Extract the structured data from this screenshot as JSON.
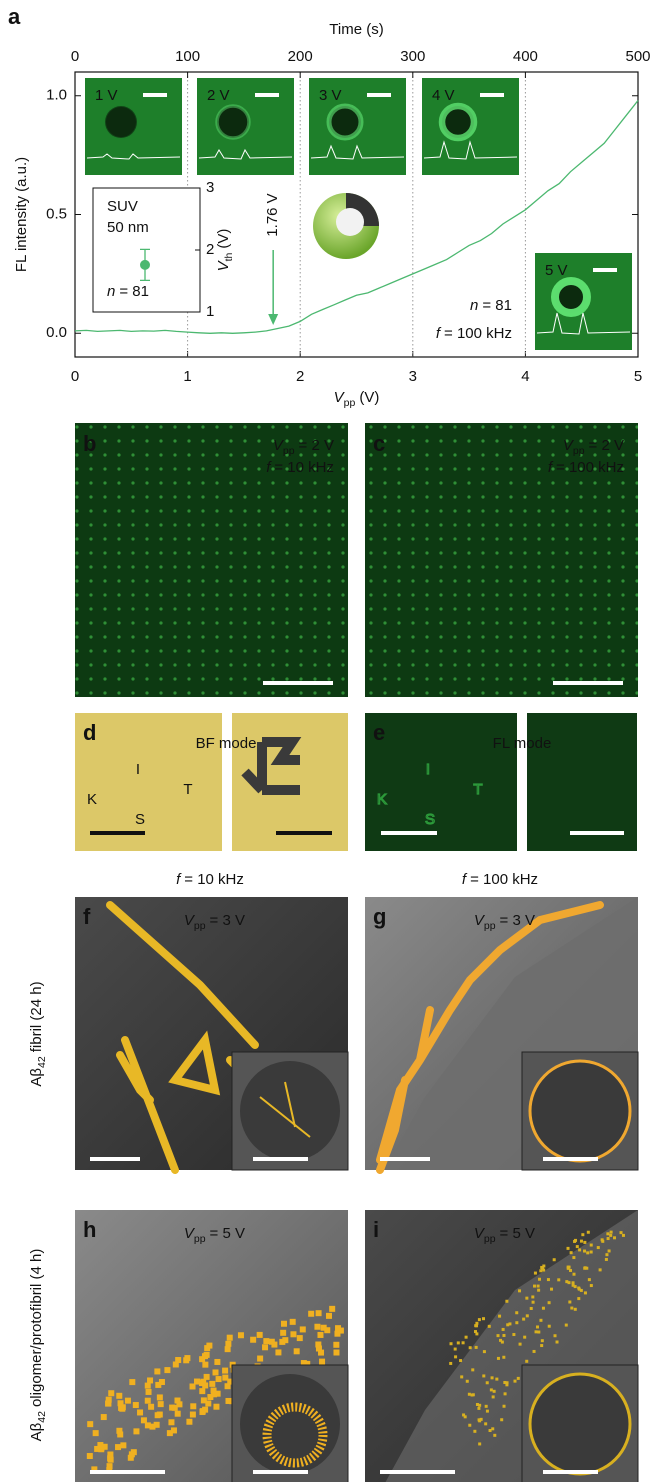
{
  "chart_data": {
    "type": "line",
    "panel": "a",
    "top_axis_label": "Time (s)",
    "top_xlim": [
      0,
      500
    ],
    "top_xticks": [
      0,
      100,
      200,
      300,
      400,
      500
    ],
    "x_label_symbol": "V",
    "x_label_sub": "pp",
    "x_label_unit": "(V)",
    "y_label": "FL intensity (a.u.)",
    "xlim": [
      0,
      5
    ],
    "xticks": [
      0,
      1,
      2,
      3,
      4,
      5
    ],
    "ylim": [
      -0.1,
      1.1
    ],
    "yticks": [
      {
        "value": 0,
        "label": "0.0"
      },
      {
        "value": 0.5,
        "label": "0.5"
      },
      {
        "value": 1,
        "label": "1.0"
      }
    ],
    "xgrid": true,
    "color": "#4cb870",
    "x": [
      0,
      0.1,
      0.2,
      0.3,
      0.4,
      0.5,
      0.6,
      0.7,
      0.8,
      0.9,
      1,
      1.1,
      1.2,
      1.3,
      1.4,
      1.5,
      1.6,
      1.7,
      1.8,
      1.9,
      2,
      2.1,
      2.2,
      2.3,
      2.4,
      2.5,
      2.6,
      2.7,
      2.8,
      2.9,
      3,
      3.1,
      3.2,
      3.3,
      3.4,
      3.5,
      3.6,
      3.7,
      3.8,
      3.9,
      4,
      4.1,
      4.2,
      4.3,
      4.4,
      4.5,
      4.6,
      4.7,
      4.8,
      4.9,
      5
    ],
    "values": [
      0.01,
      0.012,
      0.008,
      0.01,
      0.012,
      0.008,
      0.01,
      0.009,
      0.012,
      0.008,
      0.005,
      0.002,
      0,
      0.002,
      0,
      0.002,
      0.005,
      0.01,
      0.02,
      0.03,
      0.05,
      0.08,
      0.1,
      0.12,
      0.14,
      0.16,
      0.17,
      0.19,
      0.21,
      0.23,
      0.25,
      0.27,
      0.29,
      0.31,
      0.34,
      0.37,
      0.39,
      0.42,
      0.46,
      0.49,
      0.52,
      0.56,
      0.6,
      0.63,
      0.68,
      0.72,
      0.76,
      0.8,
      0.86,
      0.92,
      0.98
    ],
    "threshold": 1.76,
    "threshold_label": "1.76 V",
    "n_symbol": "n",
    "n_value": "= 81",
    "f_symbol": "f",
    "f_value": "= 100 kHz",
    "image_insets": [
      "1 V",
      "2 V",
      "3 V",
      "4 V",
      "5 V"
    ],
    "inset": {
      "label": "SUV",
      "sublabel": "50 nm",
      "y_label_symbol": "V",
      "y_label_sub": "th",
      "y_label_unit": "(V)",
      "ylim": [
        1,
        3
      ],
      "yticks": [
        1,
        2,
        3
      ],
      "values": [
        1.76
      ],
      "errors": [
        0.25
      ],
      "color": "#4cb870",
      "n_symbol": "n",
      "n_value": "= 81"
    }
  },
  "symbols": {
    "V": "V",
    "pp": "pp",
    "f": "f"
  },
  "panels": {
    "b": {
      "label": "b",
      "vpp": "= 2 V",
      "freq": "= 10 kHz"
    },
    "c": {
      "label": "c",
      "vpp": "= 2 V",
      "freq": "= 100 kHz"
    },
    "d": {
      "label": "d",
      "mode": "BF mode",
      "letters": [
        "K",
        "I",
        "S",
        "T"
      ]
    },
    "e": {
      "label": "e",
      "mode": "FL mode",
      "letters": [
        "K",
        "I",
        "S",
        "T"
      ]
    },
    "f": {
      "label": "f",
      "vpp": "= 3 V"
    },
    "g": {
      "label": "g",
      "vpp": "= 3 V"
    },
    "h": {
      "label": "h",
      "vpp": "= 5 V"
    },
    "i": {
      "label": "i",
      "vpp": "= 5 V"
    }
  },
  "column_headings": [
    "= 10 kHz",
    "= 100 kHz"
  ],
  "row_labels": [
    {
      "prefix": "Aβ",
      "sub": "42",
      "suffix": "fibril (24 h)"
    },
    {
      "prefix": "Aβ",
      "sub": "42",
      "suffix": "oligomer/protofibril (4 h)"
    }
  ]
}
